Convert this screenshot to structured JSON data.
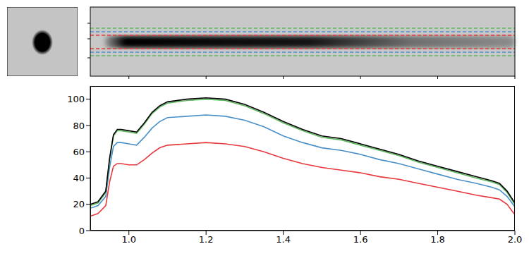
{
  "chart_data": {
    "type": "line",
    "x": [
      0.9,
      0.92,
      0.94,
      0.95,
      0.96,
      0.97,
      0.98,
      1.0,
      1.02,
      1.04,
      1.06,
      1.08,
      1.1,
      1.15,
      1.2,
      1.25,
      1.3,
      1.35,
      1.4,
      1.45,
      1.5,
      1.55,
      1.6,
      1.65,
      1.7,
      1.75,
      1.8,
      1.85,
      1.9,
      1.94,
      1.96,
      1.98,
      2.0
    ],
    "series": [
      {
        "color": "#e8383d",
        "values": [
          11,
          13,
          19,
          37,
          49,
          51,
          51,
          50,
          50,
          54,
          59,
          63,
          65,
          66,
          67,
          66,
          64,
          60,
          55,
          51,
          48,
          46,
          44,
          41,
          39,
          36,
          33,
          30,
          27,
          25,
          24,
          20,
          12
        ]
      },
      {
        "color": "#4a90c8",
        "values": [
          17,
          19,
          26,
          48,
          64,
          67,
          67,
          66,
          65,
          71,
          78,
          83,
          86,
          87,
          88,
          87,
          84,
          79,
          72,
          67,
          63,
          61,
          58,
          54,
          51,
          47,
          43,
          39,
          36,
          33,
          31,
          26,
          18
        ]
      },
      {
        "color": "#5cb85c",
        "values": [
          19,
          21,
          29,
          54,
          72,
          76,
          76,
          75,
          74,
          81,
          89,
          94,
          97,
          99,
          100,
          99,
          95,
          89,
          82,
          76,
          71,
          69,
          65,
          61,
          57,
          52,
          48,
          44,
          40,
          37,
          35,
          29,
          20
        ]
      },
      {
        "color": "#000000",
        "values": [
          20,
          22,
          30,
          55,
          73,
          77,
          77,
          76,
          75,
          82,
          90,
          95,
          98,
          100,
          101,
          100,
          96,
          90,
          83,
          77,
          72,
          70,
          66,
          62,
          58,
          53,
          49,
          45,
          41,
          38,
          36,
          30,
          21
        ]
      }
    ],
    "xlim": [
      0.9,
      2.0
    ],
    "xticks": [
      {
        "value": 1.0,
        "label": "1.0"
      },
      {
        "value": 1.2,
        "label": "1.2"
      },
      {
        "value": 1.4,
        "label": "1.4"
      },
      {
        "value": 1.6,
        "label": "1.6"
      },
      {
        "value": 1.8,
        "label": "1.8"
      },
      {
        "value": 2.0,
        "label": "2.0"
      }
    ],
    "ylim": [
      0,
      110
    ],
    "yticks": [
      0,
      20,
      40,
      60,
      80,
      100
    ]
  }
}
